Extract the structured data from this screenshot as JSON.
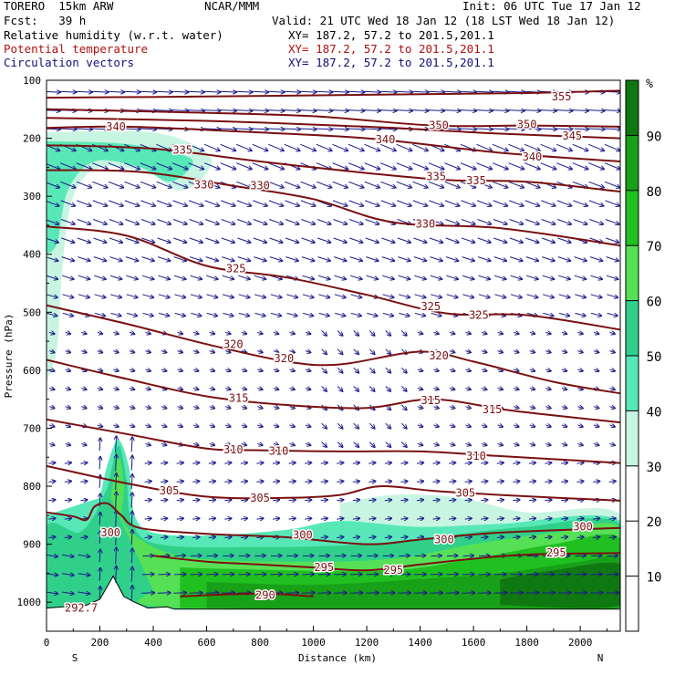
{
  "header": {
    "model": "TORERO  15km ARW",
    "center": "NCAR/MMM",
    "init": "Init: 06 UTC Tue 17 Jan 12",
    "fcst": "Fcst:   39 h",
    "valid": "Valid: 21 UTC Wed 18 Jan 12 (18 LST Wed 18 Jan 12)",
    "fields": [
      {
        "name": "Relative humidity (w.r.t. water)",
        "xy": "XY= 187.2, 57.2 to 201.5,201.1"
      },
      {
        "name": "Potential temperature",
        "xy": "XY= 187.2, 57.2 to 201.5,201.1"
      },
      {
        "name": "Circulation vectors",
        "xy": "XY= 187.2, 57.2 to 201.5,201.1"
      }
    ]
  },
  "colors": {
    "theta": "#7a1010",
    "vectors": "#1a1a8c",
    "rh_bins": [
      "#ffffff",
      "#c8f5e2",
      "#58e8b8",
      "#30d08a",
      "#56e056",
      "#20c020",
      "#18a018",
      "#107810"
    ]
  },
  "chart_data": {
    "type": "cross-section",
    "title": "Relative humidity (w.r.t. water), Potential temperature, Circulation vectors",
    "xlabel": "Distance (km)",
    "ylabel": "Pressure (hPa)",
    "xlim": [
      0,
      2150
    ],
    "ylim": [
      1050,
      100
    ],
    "x_ticks": [
      "0",
      "200",
      "400",
      "600",
      "800",
      "1000",
      "1200",
      "1400",
      "1600",
      "1800",
      "2000"
    ],
    "y_ticks": [
      "100",
      "200",
      "300",
      "400",
      "500",
      "600",
      "700",
      "800",
      "900",
      "1000"
    ],
    "endpoint_labels": {
      "left": "S",
      "right": "N"
    },
    "colorbar": {
      "unit": "%",
      "levels": [
        "10",
        "20",
        "30",
        "40",
        "50",
        "60",
        "70",
        "80",
        "90"
      ],
      "range": [
        0,
        100
      ]
    },
    "theta_contours": [
      {
        "value": 355,
        "points": [
          [
            0,
            130
          ],
          [
            600,
            128
          ],
          [
            1200,
            125
          ],
          [
            1800,
            122
          ],
          [
            2150,
            118
          ]
        ]
      },
      {
        "value": 350,
        "points": [
          [
            0,
            150
          ],
          [
            500,
            155
          ],
          [
            1000,
            162
          ],
          [
            1450,
            178
          ],
          [
            1800,
            178
          ],
          [
            2150,
            180
          ]
        ]
      },
      {
        "value": 345,
        "points": [
          [
            0,
            165
          ],
          [
            600,
            170
          ],
          [
            1200,
            180
          ],
          [
            1700,
            192
          ],
          [
            2150,
            200
          ]
        ]
      },
      {
        "value": 340,
        "points": [
          [
            0,
            182
          ],
          [
            300,
            180
          ],
          [
            700,
            188
          ],
          [
            1200,
            200
          ],
          [
            1700,
            225
          ],
          [
            2150,
            240
          ]
        ]
      },
      {
        "value": 335,
        "points": [
          [
            0,
            212
          ],
          [
            400,
            218
          ],
          [
            800,
            240
          ],
          [
            1200,
            260
          ],
          [
            1500,
            272
          ],
          [
            1800,
            275
          ],
          [
            2150,
            292
          ]
        ]
      },
      {
        "value": 330,
        "points": [
          [
            0,
            255
          ],
          [
            350,
            258
          ],
          [
            700,
            282
          ],
          [
            1000,
            305
          ],
          [
            1300,
            345
          ],
          [
            1700,
            355
          ],
          [
            2150,
            385
          ]
        ]
      },
      {
        "value": 325,
        "points": [
          [
            0,
            352
          ],
          [
            300,
            368
          ],
          [
            600,
            420
          ],
          [
            900,
            440
          ],
          [
            1200,
            470
          ],
          [
            1500,
            502
          ],
          [
            1800,
            505
          ],
          [
            2150,
            530
          ]
        ]
      },
      {
        "value": 320,
        "points": [
          [
            0,
            488
          ],
          [
            300,
            520
          ],
          [
            600,
            555
          ],
          [
            900,
            585
          ],
          [
            1100,
            590
          ],
          [
            1400,
            568
          ],
          [
            1600,
            585
          ],
          [
            1900,
            620
          ],
          [
            2150,
            640
          ]
        ]
      },
      {
        "value": 315,
        "points": [
          [
            0,
            582
          ],
          [
            300,
            615
          ],
          [
            600,
            645
          ],
          [
            900,
            660
          ],
          [
            1200,
            665
          ],
          [
            1450,
            650
          ],
          [
            1750,
            670
          ],
          [
            2150,
            690
          ]
        ]
      },
      {
        "value": 310,
        "points": [
          [
            0,
            685
          ],
          [
            300,
            710
          ],
          [
            600,
            735
          ],
          [
            800,
            738
          ],
          [
            1100,
            740
          ],
          [
            1400,
            740
          ],
          [
            1700,
            748
          ],
          [
            2150,
            760
          ]
        ]
      },
      {
        "value": 305,
        "points": [
          [
            0,
            765
          ],
          [
            300,
            795
          ],
          [
            600,
            818
          ],
          [
            900,
            820
          ],
          [
            1100,
            815
          ],
          [
            1250,
            800
          ],
          [
            1450,
            808
          ],
          [
            1700,
            815
          ],
          [
            2150,
            825
          ]
        ]
      },
      {
        "value": 300,
        "points": [
          [
            0,
            845
          ],
          [
            100,
            852
          ],
          [
            150,
            858
          ],
          [
            180,
            835
          ],
          [
            230,
            830
          ],
          [
            280,
            850
          ],
          [
            350,
            872
          ],
          [
            600,
            882
          ],
          [
            900,
            888
          ],
          [
            1200,
            900
          ],
          [
            1400,
            892
          ],
          [
            1700,
            880
          ],
          [
            2150,
            872
          ]
        ]
      },
      {
        "value": 295,
        "points": [
          [
            400,
            920
          ],
          [
            600,
            930
          ],
          [
            800,
            935
          ],
          [
            1000,
            940
          ],
          [
            1200,
            945
          ],
          [
            1400,
            935
          ],
          [
            1600,
            925
          ],
          [
            1800,
            918
          ],
          [
            2150,
            915
          ]
        ]
      },
      {
        "value": 290,
        "points": [
          [
            500,
            990
          ],
          [
            800,
            985
          ],
          [
            1000,
            990
          ]
        ]
      }
    ],
    "theta_labels": [
      {
        "text": "355",
        "x": 1930,
        "p": 128
      },
      {
        "text": "350",
        "x": 1470,
        "p": 178
      },
      {
        "text": "350",
        "x": 1800,
        "p": 176
      },
      {
        "text": "345",
        "x": 1970,
        "p": 196
      },
      {
        "text": "340",
        "x": 260,
        "p": 180
      },
      {
        "text": "340",
        "x": 1270,
        "p": 202
      },
      {
        "text": "340",
        "x": 1820,
        "p": 232
      },
      {
        "text": "335",
        "x": 510,
        "p": 220
      },
      {
        "text": "335",
        "x": 1460,
        "p": 266
      },
      {
        "text": "335",
        "x": 1610,
        "p": 273
      },
      {
        "text": "330",
        "x": 590,
        "p": 280
      },
      {
        "text": "330",
        "x": 800,
        "p": 282
      },
      {
        "text": "330",
        "x": 1420,
        "p": 348
      },
      {
        "text": "325",
        "x": 710,
        "p": 425
      },
      {
        "text": "325",
        "x": 1440,
        "p": 490
      },
      {
        "text": "325",
        "x": 1620,
        "p": 505
      },
      {
        "text": "320",
        "x": 700,
        "p": 555
      },
      {
        "text": "320",
        "x": 890,
        "p": 580
      },
      {
        "text": "320",
        "x": 1470,
        "p": 575
      },
      {
        "text": "315",
        "x": 720,
        "p": 648
      },
      {
        "text": "315",
        "x": 1440,
        "p": 652
      },
      {
        "text": "315",
        "x": 1670,
        "p": 668
      },
      {
        "text": "310",
        "x": 700,
        "p": 737
      },
      {
        "text": "310",
        "x": 870,
        "p": 739
      },
      {
        "text": "310",
        "x": 1610,
        "p": 748
      },
      {
        "text": "305",
        "x": 460,
        "p": 808
      },
      {
        "text": "305",
        "x": 800,
        "p": 820
      },
      {
        "text": "305",
        "x": 1570,
        "p": 812
      },
      {
        "text": "300",
        "x": 240,
        "p": 880
      },
      {
        "text": "300",
        "x": 960,
        "p": 884
      },
      {
        "text": "300",
        "x": 1490,
        "p": 892
      },
      {
        "text": "300",
        "x": 2010,
        "p": 870
      },
      {
        "text": "295",
        "x": 1040,
        "p": 940
      },
      {
        "text": "295",
        "x": 1300,
        "p": 945
      },
      {
        "text": "295",
        "x": 1910,
        "p": 915
      },
      {
        "text": "290",
        "x": 820,
        "p": 988
      },
      {
        "text": "292.7",
        "x": 130,
        "p": 1010
      }
    ],
    "rh_regions": [
      {
        "rh": 35,
        "points": [
          [
            0,
            190
          ],
          [
            400,
            190
          ],
          [
            600,
            225
          ],
          [
            600,
            260
          ],
          [
            500,
            290
          ],
          [
            380,
            260
          ],
          [
            200,
            250
          ],
          [
            100,
            300
          ],
          [
            60,
            420
          ],
          [
            40,
            560
          ],
          [
            0,
            620
          ]
        ]
      },
      {
        "rh": 45,
        "points": [
          [
            0,
            205
          ],
          [
            300,
            210
          ],
          [
            520,
            230
          ],
          [
            540,
            250
          ],
          [
            460,
            275
          ],
          [
            350,
            250
          ],
          [
            180,
            240
          ],
          [
            80,
            290
          ],
          [
            40,
            380
          ],
          [
            0,
            400
          ]
        ]
      },
      {
        "rh": 35,
        "points": [
          [
            1100,
            830
          ],
          [
            1300,
            815
          ],
          [
            1550,
            820
          ],
          [
            1800,
            845
          ],
          [
            2150,
            850
          ],
          [
            2150,
            1010
          ],
          [
            1100,
            1010
          ]
        ]
      },
      {
        "rh": 45,
        "points": [
          [
            200,
            820
          ],
          [
            230,
            760
          ],
          [
            270,
            720
          ],
          [
            310,
            770
          ],
          [
            330,
            850
          ],
          [
            400,
            880
          ],
          [
            600,
            885
          ],
          [
            900,
            875
          ],
          [
            1100,
            860
          ],
          [
            1400,
            870
          ],
          [
            1700,
            865
          ],
          [
            2150,
            860
          ],
          [
            2150,
            1010
          ],
          [
            0,
            1010
          ],
          [
            0,
            850
          ]
        ]
      },
      {
        "rh": 55,
        "points": [
          [
            230,
            800
          ],
          [
            270,
            730
          ],
          [
            300,
            790
          ],
          [
            320,
            860
          ],
          [
            420,
            900
          ],
          [
            800,
            905
          ],
          [
            1200,
            900
          ],
          [
            1500,
            885
          ],
          [
            1800,
            870
          ],
          [
            2150,
            865
          ],
          [
            2150,
            1010
          ],
          [
            0,
            1010
          ],
          [
            0,
            870
          ],
          [
            120,
            880
          ],
          [
            180,
            850
          ]
        ]
      },
      {
        "rh": 65,
        "points": [
          [
            240,
            820
          ],
          [
            270,
            750
          ],
          [
            290,
            800
          ],
          [
            300,
            870
          ],
          [
            500,
            920
          ],
          [
            900,
            930
          ],
          [
            1300,
            925
          ],
          [
            1600,
            900
          ],
          [
            1900,
            880
          ],
          [
            2150,
            872
          ],
          [
            2150,
            1010
          ],
          [
            500,
            1010
          ],
          [
            400,
            980
          ]
        ]
      },
      {
        "rh": 75,
        "points": [
          [
            500,
            940
          ],
          [
            900,
            945
          ],
          [
            1300,
            945
          ],
          [
            1600,
            925
          ],
          [
            1900,
            900
          ],
          [
            2150,
            890
          ],
          [
            2150,
            1010
          ],
          [
            500,
            1010
          ]
        ]
      },
      {
        "rh": 85,
        "points": [
          [
            600,
            965
          ],
          [
            1000,
            970
          ],
          [
            1400,
            960
          ],
          [
            1700,
            950
          ],
          [
            2000,
            930
          ],
          [
            2150,
            925
          ],
          [
            2150,
            1010
          ],
          [
            600,
            1010
          ]
        ]
      },
      {
        "rh": 95,
        "points": [
          [
            1700,
            960
          ],
          [
            1900,
            945
          ],
          [
            2150,
            935
          ],
          [
            2150,
            1005
          ],
          [
            1700,
            1005
          ]
        ]
      }
    ],
    "terrain": {
      "points": [
        [
          0,
          1010
        ],
        [
          150,
          1005
        ],
        [
          200,
          995
        ],
        [
          250,
          955
        ],
        [
          290,
          990
        ],
        [
          330,
          1000
        ],
        [
          380,
          1010
        ],
        [
          450,
          1008
        ],
        [
          480,
          1012
        ],
        [
          2150,
          1012
        ]
      ]
    },
    "vectors": {
      "description": "Circulation vectors (u, omega) on a regular grid; upper-level NW flow, descending air aloft, strong ascent over terrain near 270 km."
    }
  }
}
